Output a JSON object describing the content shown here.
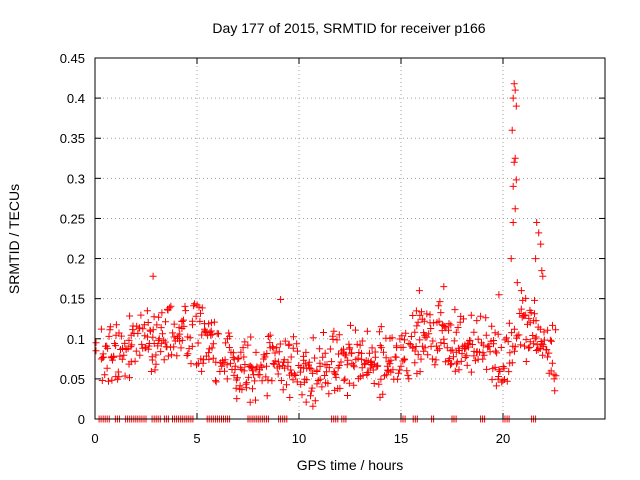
{
  "chart_data": {
    "type": "scatter",
    "title": "Day 177 of 2015, SRMTID for receiver p166",
    "xlabel": "GPS time / hours",
    "ylabel": "SRMTID / TECUs",
    "xlim": [
      0,
      25
    ],
    "ylim": [
      0,
      0.45
    ],
    "xticks": [
      0,
      5,
      10,
      15,
      20
    ],
    "xtick_labels": [
      "0",
      "5",
      "10",
      "15",
      "20"
    ],
    "yticks": [
      0,
      0.05,
      0.1,
      0.15,
      0.2,
      0.25,
      0.3,
      0.35,
      0.4,
      0.45
    ],
    "ytick_labels": [
      "0",
      "0.05",
      "0.1",
      "0.15",
      "0.2",
      "0.25",
      "0.3",
      "0.35",
      "0.4",
      "0.45"
    ],
    "grid": true,
    "marker": "+",
    "color": "#ff0000",
    "series": [
      {
        "name": "SRMTID",
        "x_start": 0.0,
        "x_step": 0.05,
        "x_end": 22.65,
        "baseline": [
          [
            0.0,
            0.09
          ],
          [
            1.0,
            0.085
          ],
          [
            2.0,
            0.09
          ],
          [
            3.0,
            0.1
          ],
          [
            4.0,
            0.1
          ],
          [
            5.0,
            0.105
          ],
          [
            6.0,
            0.09
          ],
          [
            7.0,
            0.06
          ],
          [
            8.0,
            0.065
          ],
          [
            9.0,
            0.07
          ],
          [
            10.0,
            0.055
          ],
          [
            11.0,
            0.06
          ],
          [
            12.0,
            0.075
          ],
          [
            13.0,
            0.07
          ],
          [
            14.0,
            0.07
          ],
          [
            15.0,
            0.085
          ],
          [
            16.0,
            0.1
          ],
          [
            17.0,
            0.11
          ],
          [
            18.0,
            0.09
          ],
          [
            19.0,
            0.1
          ],
          [
            20.0,
            0.07
          ],
          [
            20.5,
            0.1
          ],
          [
            21.0,
            0.12
          ],
          [
            22.0,
            0.09
          ],
          [
            22.65,
            0.07
          ]
        ],
        "spread": 0.035,
        "notable_points": [
          {
            "x": 0.05,
            "y": 0.095
          },
          {
            "x": 0.05,
            "y": 0.085
          },
          {
            "x": 2.85,
            "y": 0.178
          },
          {
            "x": 9.1,
            "y": 0.149
          },
          {
            "x": 20.55,
            "y": 0.418
          },
          {
            "x": 20.6,
            "y": 0.41
          },
          {
            "x": 20.5,
            "y": 0.4
          },
          {
            "x": 20.65,
            "y": 0.39
          },
          {
            "x": 20.45,
            "y": 0.36
          },
          {
            "x": 20.6,
            "y": 0.325
          },
          {
            "x": 20.55,
            "y": 0.32
          },
          {
            "x": 20.65,
            "y": 0.298
          },
          {
            "x": 20.5,
            "y": 0.29
          },
          {
            "x": 20.6,
            "y": 0.262
          },
          {
            "x": 20.5,
            "y": 0.245
          },
          {
            "x": 20.4,
            "y": 0.2
          },
          {
            "x": 21.65,
            "y": 0.245
          },
          {
            "x": 21.75,
            "y": 0.232
          },
          {
            "x": 21.85,
            "y": 0.218
          },
          {
            "x": 21.6,
            "y": 0.2
          },
          {
            "x": 21.9,
            "y": 0.185
          },
          {
            "x": 21.95,
            "y": 0.178
          },
          {
            "x": 19.8,
            "y": 0.155
          },
          {
            "x": 20.7,
            "y": 0.17
          },
          {
            "x": 20.9,
            "y": 0.16
          },
          {
            "x": 15.9,
            "y": 0.16
          },
          {
            "x": 17.1,
            "y": 0.165
          }
        ],
        "zero_ranges": [
          [
            0.2,
            0.7
          ],
          [
            1.0,
            1.2
          ],
          [
            1.5,
            2.5
          ],
          [
            2.8,
            3.2
          ],
          [
            3.4,
            3.6
          ],
          [
            3.8,
            4.8
          ],
          [
            5.5,
            6.6
          ],
          [
            7.5,
            8.5
          ],
          [
            9.0,
            9.4
          ],
          [
            11.6,
            11.9
          ],
          [
            12.1,
            12.3
          ],
          [
            15.0,
            15.2
          ],
          [
            15.6,
            15.8
          ],
          [
            16.5,
            16.6
          ],
          [
            17.5,
            17.7
          ],
          [
            18.9,
            19.1
          ],
          [
            20.0,
            20.3
          ],
          [
            21.4,
            21.6
          ]
        ]
      }
    ]
  }
}
